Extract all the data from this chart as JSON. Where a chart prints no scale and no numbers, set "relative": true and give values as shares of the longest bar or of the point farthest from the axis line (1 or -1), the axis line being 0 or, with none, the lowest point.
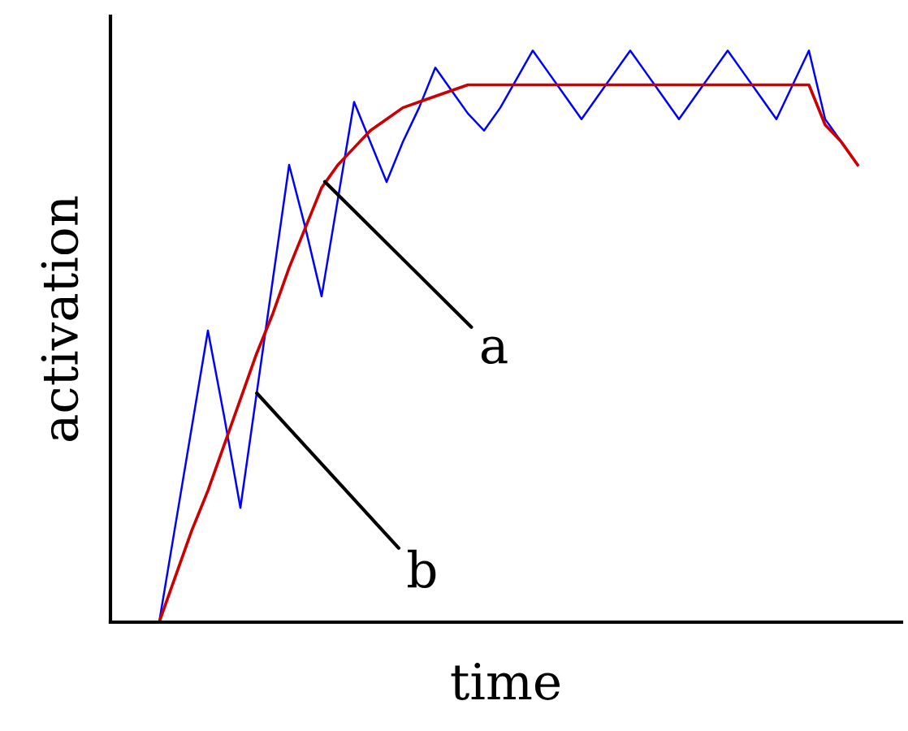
{
  "chart_data": {
    "type": "line",
    "relative": true,
    "xlabel": "time",
    "ylabel": "activation",
    "categories": [
      null,
      null,
      null,
      null,
      null,
      null,
      null,
      null,
      null,
      null,
      null,
      null,
      null,
      null,
      null,
      null,
      null,
      null,
      null,
      null,
      null,
      null,
      null,
      null,
      null,
      null,
      null,
      null,
      null,
      null,
      null,
      null,
      null,
      null,
      null,
      null,
      null,
      null,
      null,
      null,
      null,
      null,
      null,
      null
    ],
    "series": [
      {
        "color": "#0000ff",
        "values": [
          0,
          0.17,
          0.34,
          0.51,
          0.36,
          0.2,
          0.4,
          0.6,
          0.8,
          0.69,
          0.57,
          0.74,
          0.91,
          0.84,
          0.77,
          0.84,
          0.9,
          0.97,
          0.93,
          0.89,
          0.86,
          0.9,
          0.95,
          1,
          0.96,
          0.92,
          0.88,
          0.92,
          0.96,
          1,
          0.96,
          0.92,
          0.88,
          0.92,
          0.96,
          1,
          0.96,
          0.92,
          0.88,
          0.94,
          1,
          0.88,
          0.84,
          0.8
        ]
      },
      {
        "color": "#cc0000",
        "values": [
          0,
          0.08,
          0.16,
          0.23,
          0.31,
          0.39,
          0.47,
          0.54,
          0.62,
          0.69,
          0.76,
          0.8,
          0.83,
          0.86,
          0.88,
          0.9,
          0.91,
          0.92,
          0.93,
          0.94,
          0.94,
          0.94,
          0.94,
          0.94,
          0.94,
          0.94,
          0.94,
          0.94,
          0.94,
          0.94,
          0.94,
          0.94,
          0.94,
          0.94,
          0.94,
          0.94,
          0.94,
          0.94,
          0.94,
          0.94,
          0.94,
          0.87,
          0.84,
          0.8
        ]
      }
    ],
    "annotations": [
      "a",
      "b"
    ],
    "grid": false,
    "marker": "none",
    "line_style": "solid"
  }
}
